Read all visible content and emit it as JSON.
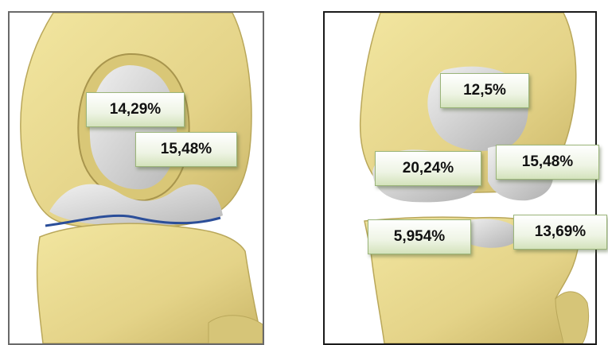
{
  "colors": {
    "bone": "#e8d98a",
    "bone_shade": "#b9a75a",
    "cartilage": "#d8d8d8",
    "meniscus_edge": "#2b4e99",
    "label_border": "#9bb57a",
    "label_fill": "#eef4e4"
  },
  "left_panel": {
    "labels": [
      {
        "id": "femoral-patellar",
        "text": "14,29%"
      },
      {
        "id": "femoral-lateral",
        "text": "15,48%"
      }
    ]
  },
  "right_panel": {
    "labels": [
      {
        "id": "femoral-trochlea",
        "text": "12,5%"
      },
      {
        "id": "femoral-medial",
        "text": "20,24%"
      },
      {
        "id": "femoral-lateral",
        "text": "15,48%"
      },
      {
        "id": "tibial-medial",
        "text": "5,954%"
      },
      {
        "id": "tibial-lateral",
        "text": "13,69%"
      }
    ]
  }
}
